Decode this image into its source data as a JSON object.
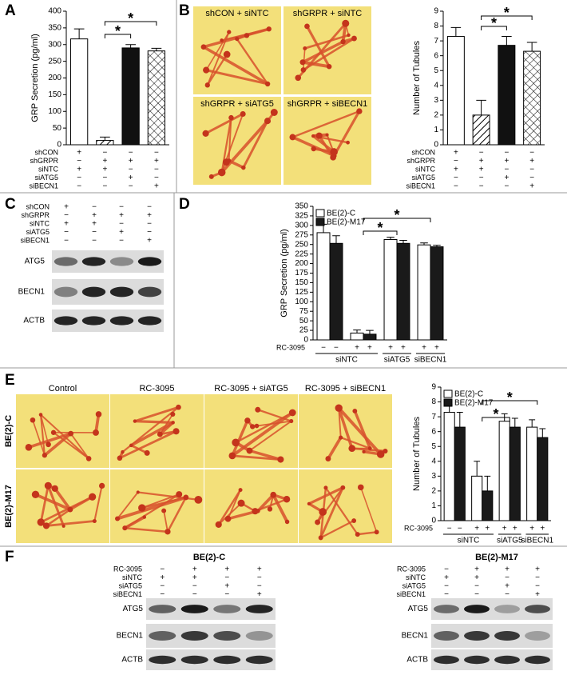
{
  "panel_labels": [
    "A",
    "B",
    "C",
    "D",
    "E",
    "F"
  ],
  "chart_data": [
    {
      "type": "bar",
      "ylabel": "GRP Secretion (pg/ml)",
      "ylim": [
        0,
        400
      ],
      "yticks": [
        0,
        50,
        100,
        150,
        200,
        250,
        300,
        350,
        400
      ],
      "values": [
        317,
        13,
        290,
        281
      ],
      "errors": [
        30,
        10,
        10,
        8
      ],
      "fills": [
        "white",
        "hatch",
        "black",
        "crosshatch"
      ],
      "conditions": [
        {
          "label": "shCON",
          "marks": [
            "+",
            "−",
            "−",
            "−"
          ]
        },
        {
          "label": "shGRPR",
          "marks": [
            "−",
            "+",
            "+",
            "+"
          ]
        },
        {
          "label": "siNTC",
          "marks": [
            "+",
            "+",
            "−",
            "−"
          ]
        },
        {
          "label": "siATG5",
          "marks": [
            "−",
            "−",
            "+",
            "−"
          ]
        },
        {
          "label": "siBECN1",
          "marks": [
            "−",
            "−",
            "−",
            "+"
          ]
        }
      ],
      "annotations": [
        "*",
        "*"
      ]
    },
    {
      "type": "bar",
      "ylabel": "Number of Tubules",
      "ylim": [
        0,
        9
      ],
      "yticks": [
        0,
        1,
        2,
        3,
        4,
        5,
        6,
        7,
        8,
        9
      ],
      "values": [
        7.3,
        2.0,
        6.7,
        6.3
      ],
      "errors": [
        0.6,
        1.0,
        0.6,
        0.6
      ],
      "fills": [
        "white",
        "hatch",
        "black",
        "crosshatch"
      ],
      "conditions": [
        {
          "label": "shCON",
          "marks": [
            "+",
            "−",
            "−",
            "−"
          ]
        },
        {
          "label": "shGRPR",
          "marks": [
            "−",
            "+",
            "+",
            "+"
          ]
        },
        {
          "label": "siNTC",
          "marks": [
            "+",
            "+",
            "−",
            "−"
          ]
        },
        {
          "label": "siATG5",
          "marks": [
            "−",
            "−",
            "+",
            "−"
          ]
        },
        {
          "label": "siBECN1",
          "marks": [
            "−",
            "−",
            "−",
            "+"
          ]
        }
      ],
      "annotations": [
        "*",
        "*"
      ]
    },
    {
      "type": "bar",
      "ylabel": "GRP Secretion (pg/ml)",
      "ylim": [
        0,
        350
      ],
      "yticks": [
        0,
        25,
        50,
        75,
        100,
        125,
        150,
        175,
        200,
        225,
        250,
        275,
        300,
        325,
        350
      ],
      "series": [
        {
          "name": "BE(2)-C",
          "color": "#ffffff",
          "values": [
            281,
            18,
            263,
            249
          ],
          "errors": [
            22,
            8,
            6,
            5
          ]
        },
        {
          "name": "BE(2)-M17",
          "color": "#1a1a1a",
          "values": [
            253,
            15,
            253,
            244
          ],
          "errors": [
            20,
            10,
            8,
            4
          ]
        }
      ],
      "conditions": [
        {
          "label": "RC-3095",
          "marks": [
            "−",
            "−",
            "+",
            "+",
            "+",
            "+",
            "+",
            "+"
          ]
        }
      ],
      "groups": [
        {
          "label": "siNTC",
          "size": 2
        },
        {
          "label": "siATG5",
          "size": 1
        },
        {
          "label": "siBECN1",
          "size": 1
        }
      ],
      "annotations": [
        "*",
        "*"
      ]
    },
    {
      "type": "bar",
      "ylabel": "Number of Tubules",
      "ylim": [
        0,
        9
      ],
      "yticks": [
        0,
        1,
        2,
        3,
        4,
        5,
        6,
        7,
        8,
        9
      ],
      "series": [
        {
          "name": "BE(2)-C",
          "color": "#ffffff",
          "values": [
            7.3,
            3.0,
            6.7,
            6.3
          ],
          "errors": [
            0.5,
            1.0,
            0.5,
            0.5
          ]
        },
        {
          "name": "BE(2)-M17",
          "color": "#1a1a1a",
          "values": [
            6.3,
            2.0,
            6.3,
            5.6
          ],
          "errors": [
            1.0,
            1.0,
            0.6,
            0.6
          ]
        }
      ],
      "conditions": [
        {
          "label": "RC-3095",
          "marks": [
            "−",
            "−",
            "+",
            "+",
            "+",
            "+",
            "+",
            "+"
          ]
        }
      ],
      "groups": [
        {
          "label": "siNTC",
          "size": 2
        },
        {
          "label": "siATG5",
          "size": 1
        },
        {
          "label": "siBECN1",
          "size": 1
        }
      ],
      "annotations": [
        "*",
        "*"
      ]
    }
  ],
  "micrographs": {
    "B": {
      "labels": [
        "shCON + siNTC",
        "shGRPR + siNTC",
        "shGRPR + siATG5",
        "shGRPR + siBECN1"
      ]
    },
    "E": {
      "columns": [
        "Control",
        "RC-3095",
        "RC-3095 + siATG5",
        "RC-3095 + siBECN1"
      ],
      "rows": [
        "BE(2)-C",
        "BE(2)-M17"
      ]
    }
  },
  "blots": {
    "C": {
      "conditions": [
        {
          "label": "shCON",
          "marks": [
            "+",
            "−",
            "−",
            "−"
          ]
        },
        {
          "label": "shGRPR",
          "marks": [
            "−",
            "+",
            "+",
            "+"
          ]
        },
        {
          "label": "siNTC",
          "marks": [
            "+",
            "+",
            "−",
            "−"
          ]
        },
        {
          "label": "siATG5",
          "marks": [
            "−",
            "−",
            "+",
            "−"
          ]
        },
        {
          "label": "siBECN1",
          "marks": [
            "−",
            "−",
            "−",
            "+"
          ]
        }
      ],
      "bands": [
        "ATG5",
        "BECN1",
        "ACTB"
      ]
    },
    "F": [
      {
        "title": "BE(2)-C",
        "conditions": [
          {
            "label": "RC-3095",
            "marks": [
              "−",
              "+",
              "+",
              "+"
            ]
          },
          {
            "label": "siNTC",
            "marks": [
              "+",
              "+",
              "−",
              "−"
            ]
          },
          {
            "label": "siATG5",
            "marks": [
              "−",
              "−",
              "+",
              "−"
            ]
          },
          {
            "label": "siBECN1",
            "marks": [
              "−",
              "−",
              "−",
              "+"
            ]
          }
        ],
        "bands": [
          "ATG5",
          "BECN1",
          "ACTB"
        ]
      },
      {
        "title": "BE(2)-M17",
        "conditions": [
          {
            "label": "RC-3095",
            "marks": [
              "−",
              "+",
              "+",
              "+"
            ]
          },
          {
            "label": "siNTC",
            "marks": [
              "+",
              "+",
              "−",
              "−"
            ]
          },
          {
            "label": "siATG5",
            "marks": [
              "−",
              "−",
              "+",
              "−"
            ]
          },
          {
            "label": "siBECN1",
            "marks": [
              "−",
              "−",
              "−",
              "+"
            ]
          }
        ],
        "bands": [
          "ATG5",
          "BECN1",
          "ACTB"
        ]
      }
    ]
  }
}
